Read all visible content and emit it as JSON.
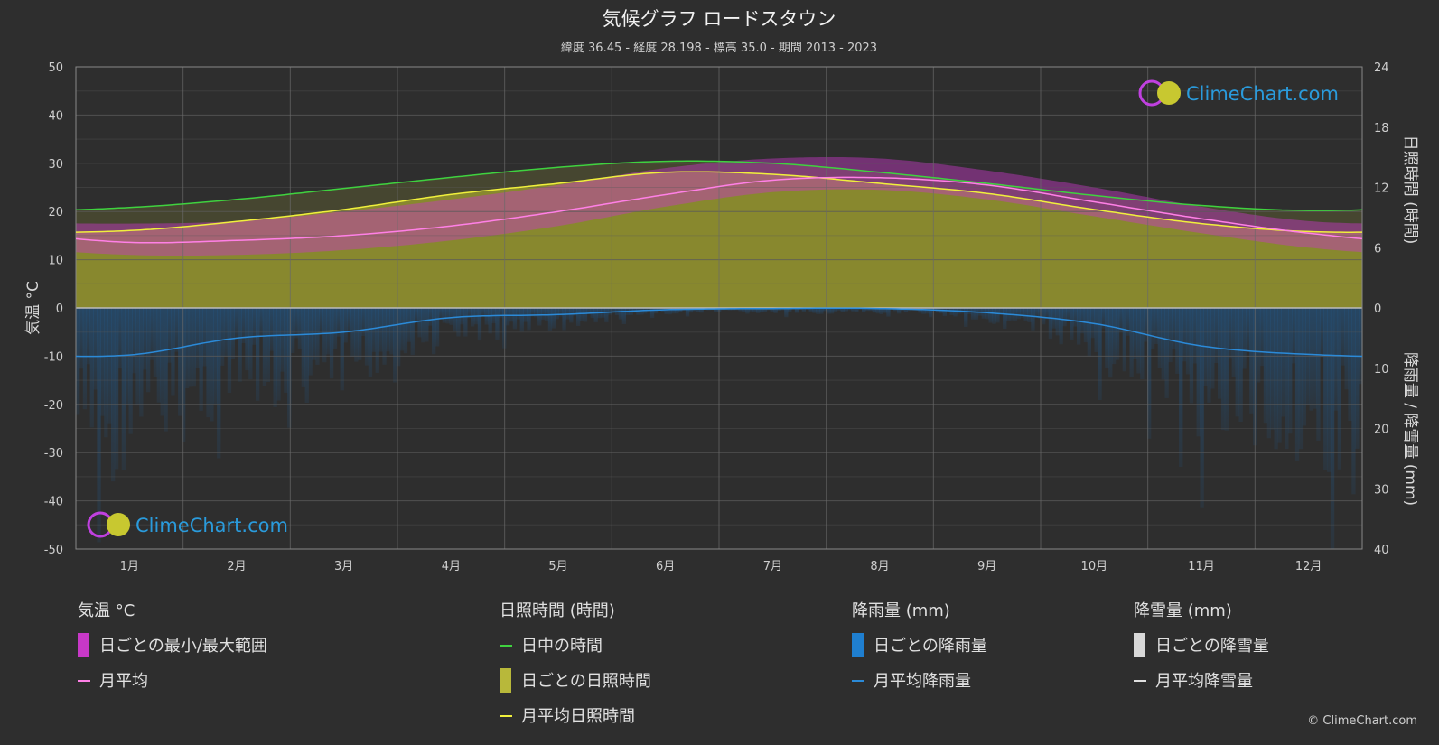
{
  "chart_data": {
    "type": "area",
    "title": "気候グラフ ロードスタウン",
    "subtitle": "緯度 36.45 - 経度 28.198 - 標高 35.0 - 期間 2013 - 2023",
    "categories": [
      "1月",
      "2月",
      "3月",
      "4月",
      "5月",
      "6月",
      "7月",
      "8月",
      "9月",
      "10月",
      "11月",
      "12月"
    ],
    "y_left": {
      "label": "気温 °C",
      "ylim": [
        -50,
        50
      ],
      "ticks": [
        "50",
        "40",
        "30",
        "20",
        "10",
        "0",
        "-10",
        "-20",
        "-30",
        "-40",
        "-50"
      ]
    },
    "y_right_top": {
      "label": "日照時間 (時間)",
      "ylim": [
        0,
        24
      ],
      "ticks": [
        "24",
        "18",
        "12",
        "6",
        "0"
      ]
    },
    "y_right_bottom": {
      "label": "降雨量 / 降雪量 (mm)",
      "ylim": [
        0,
        40
      ],
      "ticks": [
        "10",
        "20",
        "30",
        "40"
      ]
    },
    "grid": true,
    "series": [
      {
        "name": "日中の時間",
        "unit": "hours",
        "color": "#3fd23f",
        "values": [
          10.0,
          10.8,
          11.9,
          13.0,
          14.0,
          14.6,
          14.4,
          13.5,
          12.4,
          11.2,
          10.2,
          9.7
        ]
      },
      {
        "name": "月平均日照時間",
        "unit": "hours",
        "color": "#f0f03c",
        "values": [
          7.7,
          8.6,
          9.8,
          11.3,
          12.4,
          13.5,
          13.3,
          12.4,
          11.4,
          9.8,
          8.4,
          7.6
        ]
      },
      {
        "name": "月平均",
        "unit": "°C",
        "color": "#ff80e6",
        "values": [
          13.6,
          14.0,
          15.0,
          17.0,
          20.0,
          23.5,
          26.5,
          27.0,
          25.5,
          22.0,
          18.5,
          15.5
        ]
      },
      {
        "name": "月平均降雨量",
        "unit": "mm",
        "color": "#2b8ad8",
        "values": [
          7.8,
          5.0,
          4.0,
          1.6,
          1.1,
          0.3,
          0.1,
          0.1,
          0.8,
          2.6,
          6.3,
          7.7
        ]
      },
      {
        "name": "月平均降雪量",
        "unit": "mm",
        "color": "#e0e0e0",
        "values": [
          0,
          0,
          0,
          0,
          0,
          0,
          0,
          0,
          0,
          0,
          0,
          0
        ]
      }
    ],
    "daily_temp_range": {
      "min": [
        11.0,
        11.0,
        12.0,
        14.0,
        17.0,
        21.0,
        24.0,
        24.5,
        22.5,
        19.0,
        15.5,
        12.5
      ],
      "max": [
        17.5,
        18.0,
        20.0,
        22.5,
        25.5,
        29.0,
        31.0,
        31.0,
        28.5,
        25.0,
        21.0,
        18.0
      ]
    },
    "colors": {
      "background": "#2e2e2e",
      "grid": "#5a5a5a",
      "sunshine_fill": "#8c8c2e",
      "temp_range": "#c738c7",
      "rain_bars": "#1f5f99"
    }
  },
  "legend": {
    "groups": [
      {
        "title": "気温 °C",
        "items": [
          "日ごとの最小/最大範囲",
          "月平均"
        ]
      },
      {
        "title": "日照時間 (時間)",
        "items": [
          "日中の時間",
          "日ごとの日照時間",
          "月平均日照時間"
        ]
      },
      {
        "title": "降雨量 (mm)",
        "items": [
          "日ごとの降雨量",
          "月平均降雨量"
        ]
      },
      {
        "title": "降雪量 (mm)",
        "items": [
          "日ごとの降雪量",
          "月平均降雪量"
        ]
      }
    ]
  },
  "branding": {
    "logo": "ClimeChart.com",
    "copyright": "© ClimeChart.com"
  }
}
